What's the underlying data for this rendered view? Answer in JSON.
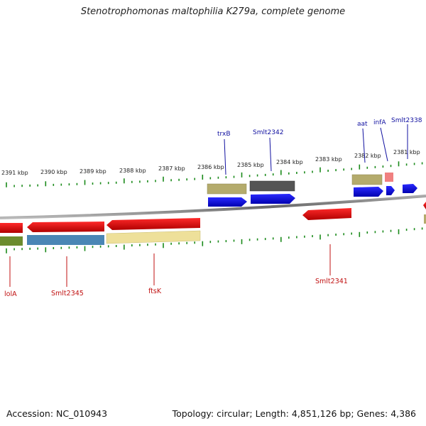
{
  "title": "Stenotrophomonas maltophilia K279a, complete genome",
  "footer": {
    "accession": "Accession: NC_010943",
    "summary": "Topology: circular; Length: 4,851,126 bp; Genes: 4,386"
  },
  "kbp_labels": [
    "2391 kbp",
    "2390 kbp",
    "2389 kbp",
    "2388 kbp",
    "2387 kbp",
    "2386 kbp",
    "2385 kbp",
    "2384 kbp",
    "2383 kbp",
    "2382 kbp",
    "2381 kbp"
  ],
  "top_gene_labels": [
    "trxB",
    "Smlt2342",
    "aat",
    "infA",
    "Smlt2338"
  ],
  "bottom_gene_labels": [
    "lolA",
    "Smlt2345",
    "ftsK",
    "Smlt2341"
  ],
  "colors": {
    "forward_gene": "#0000ee",
    "reverse_gene": "#ee0000",
    "tick": "#1a8a1a",
    "backbone": "#777777",
    "label_top": "#1010a0",
    "label_bottom": "#c01010"
  }
}
